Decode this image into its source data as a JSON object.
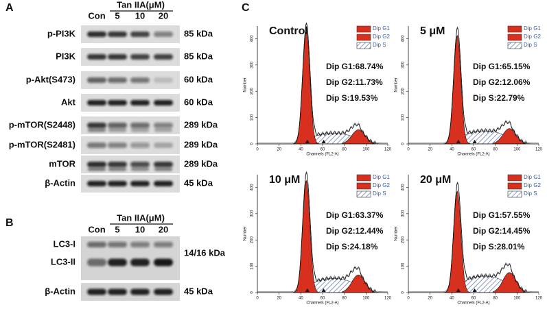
{
  "panel_a": {
    "label": "A",
    "treatment": "Tan IIA(μM)",
    "lanes": [
      "Con",
      "5",
      "10",
      "20"
    ],
    "rows": [
      {
        "protein": "p-PI3K",
        "size": "85 kDa"
      },
      {
        "protein": "PI3K",
        "size": "85 kDa"
      },
      {
        "protein": "p-Akt(S473)",
        "size": "60 kDa"
      },
      {
        "protein": "Akt",
        "size": "60 kDa"
      },
      {
        "protein": "p-mTOR(S2448)",
        "size": "289 kDa"
      },
      {
        "protein": "p-mTOR(S2481)",
        "size": "289 kDa"
      },
      {
        "protein": "mTOR",
        "size": "289 kDa"
      },
      {
        "protein": "β-Actin",
        "size": "45 kDa"
      }
    ]
  },
  "panel_b": {
    "label": "B",
    "treatment": "Tan IIA(μM)",
    "lanes": [
      "Con",
      "5",
      "10",
      "20"
    ],
    "groups": [
      {
        "proteins": [
          "LC3-I",
          "LC3-II"
        ],
        "size": "14/16 kDa"
      },
      {
        "proteins": [
          "β-Actin"
        ],
        "size": "45 kDa"
      }
    ]
  },
  "panel_c": {
    "label": "C",
    "x_label": "Channels (FL2-A)",
    "y_label": "Number",
    "x_ticks": [
      "0",
      "20",
      "40",
      "60",
      "80",
      "100",
      "120"
    ],
    "y_ticks": [
      "0",
      "100",
      "200",
      "300",
      "400"
    ],
    "legend": [
      "Dip G1",
      "Dip G2",
      "Dip S"
    ],
    "histograms": [
      {
        "title": "Control",
        "stats": [
          "Dip G1:68.74%",
          "Dip G2:11.73%",
          "Dip S:19.53%"
        ]
      },
      {
        "title": "5 μM",
        "stats": [
          "Dip G1:65.15%",
          "Dip G2:12.06%",
          "Dip S:22.79%"
        ]
      },
      {
        "title": "10 μM",
        "stats": [
          "Dip G1:63.37%",
          "Dip G2:12.44%",
          "Dip S:24.18%"
        ]
      },
      {
        "title": "20 μM",
        "stats": [
          "Dip G1:57.55%",
          "Dip G2:14.45%",
          "Dip S:28.01%"
        ]
      }
    ]
  }
}
